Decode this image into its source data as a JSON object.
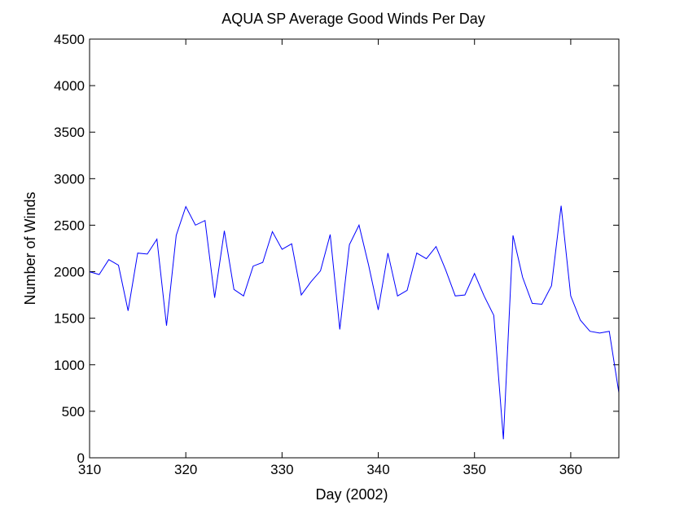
{
  "chart_data": {
    "type": "line",
    "title": "AQUA SP Average Good Winds Per Day",
    "xlabel": "Day (2002)",
    "ylabel": "Number of Winds",
    "xlim": [
      310,
      365
    ],
    "ylim": [
      0,
      4500
    ],
    "xticks": [
      310,
      320,
      330,
      340,
      350,
      360
    ],
    "yticks": [
      0,
      500,
      1000,
      1500,
      2000,
      2500,
      3000,
      3500,
      4000,
      4500
    ],
    "grid": false,
    "line_color": "#0000ff",
    "series": [
      {
        "x": [
          310,
          311,
          312,
          313,
          314,
          315,
          316,
          317,
          318,
          319,
          320,
          321,
          322,
          323,
          324,
          325,
          326,
          327,
          328,
          329,
          330,
          331,
          332,
          333,
          334,
          335,
          336,
          337,
          338,
          339,
          340,
          341,
          342,
          343,
          344,
          345,
          346,
          347,
          348,
          349,
          350,
          351,
          352,
          353,
          354,
          355,
          356,
          357,
          358,
          359,
          360,
          361,
          362,
          363,
          364,
          365
        ],
        "values": [
          2000,
          1970,
          2130,
          2070,
          1580,
          2200,
          2190,
          2350,
          1420,
          2390,
          2700,
          2500,
          2550,
          1720,
          2440,
          1810,
          1740,
          2060,
          2100,
          2430,
          2240,
          2300,
          1750,
          1890,
          2010,
          2400,
          1380,
          2290,
          2500,
          2070,
          1590,
          2200,
          1740,
          1800,
          2200,
          2140,
          2270,
          2020,
          1740,
          1750,
          1980,
          1740,
          1530,
          200,
          2390,
          1940,
          1660,
          1650,
          1850,
          2710,
          1740,
          1480,
          1360,
          1340,
          1360,
          700
        ]
      }
    ]
  }
}
